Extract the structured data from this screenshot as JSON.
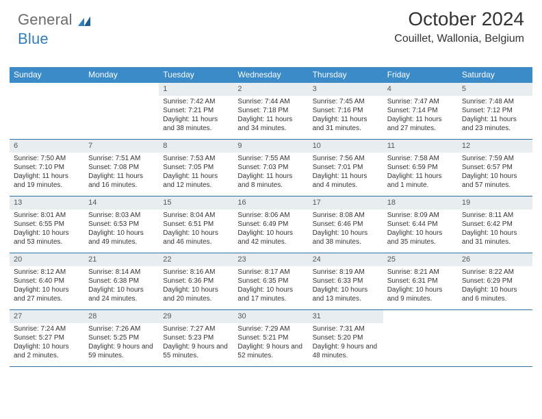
{
  "logo": {
    "text_general": "General",
    "text_blue": "Blue"
  },
  "title": "October 2024",
  "location": "Couillet, Wallonia, Belgium",
  "colors": {
    "header_bg": "#3b8bc9",
    "daynum_bg": "#e8edf0",
    "week_border": "#2f6ea3",
    "text": "#333333",
    "logo_gray": "#6b6b6b",
    "logo_blue": "#2f7ec0"
  },
  "weekdays": [
    "Sunday",
    "Monday",
    "Tuesday",
    "Wednesday",
    "Thursday",
    "Friday",
    "Saturday"
  ],
  "weeks": [
    [
      {
        "n": "",
        "sr": "",
        "ss": "",
        "dl": ""
      },
      {
        "n": "",
        "sr": "",
        "ss": "",
        "dl": ""
      },
      {
        "n": "1",
        "sr": "Sunrise: 7:42 AM",
        "ss": "Sunset: 7:21 PM",
        "dl": "Daylight: 11 hours and 38 minutes."
      },
      {
        "n": "2",
        "sr": "Sunrise: 7:44 AM",
        "ss": "Sunset: 7:18 PM",
        "dl": "Daylight: 11 hours and 34 minutes."
      },
      {
        "n": "3",
        "sr": "Sunrise: 7:45 AM",
        "ss": "Sunset: 7:16 PM",
        "dl": "Daylight: 11 hours and 31 minutes."
      },
      {
        "n": "4",
        "sr": "Sunrise: 7:47 AM",
        "ss": "Sunset: 7:14 PM",
        "dl": "Daylight: 11 hours and 27 minutes."
      },
      {
        "n": "5",
        "sr": "Sunrise: 7:48 AM",
        "ss": "Sunset: 7:12 PM",
        "dl": "Daylight: 11 hours and 23 minutes."
      }
    ],
    [
      {
        "n": "6",
        "sr": "Sunrise: 7:50 AM",
        "ss": "Sunset: 7:10 PM",
        "dl": "Daylight: 11 hours and 19 minutes."
      },
      {
        "n": "7",
        "sr": "Sunrise: 7:51 AM",
        "ss": "Sunset: 7:08 PM",
        "dl": "Daylight: 11 hours and 16 minutes."
      },
      {
        "n": "8",
        "sr": "Sunrise: 7:53 AM",
        "ss": "Sunset: 7:05 PM",
        "dl": "Daylight: 11 hours and 12 minutes."
      },
      {
        "n": "9",
        "sr": "Sunrise: 7:55 AM",
        "ss": "Sunset: 7:03 PM",
        "dl": "Daylight: 11 hours and 8 minutes."
      },
      {
        "n": "10",
        "sr": "Sunrise: 7:56 AM",
        "ss": "Sunset: 7:01 PM",
        "dl": "Daylight: 11 hours and 4 minutes."
      },
      {
        "n": "11",
        "sr": "Sunrise: 7:58 AM",
        "ss": "Sunset: 6:59 PM",
        "dl": "Daylight: 11 hours and 1 minute."
      },
      {
        "n": "12",
        "sr": "Sunrise: 7:59 AM",
        "ss": "Sunset: 6:57 PM",
        "dl": "Daylight: 10 hours and 57 minutes."
      }
    ],
    [
      {
        "n": "13",
        "sr": "Sunrise: 8:01 AM",
        "ss": "Sunset: 6:55 PM",
        "dl": "Daylight: 10 hours and 53 minutes."
      },
      {
        "n": "14",
        "sr": "Sunrise: 8:03 AM",
        "ss": "Sunset: 6:53 PM",
        "dl": "Daylight: 10 hours and 49 minutes."
      },
      {
        "n": "15",
        "sr": "Sunrise: 8:04 AM",
        "ss": "Sunset: 6:51 PM",
        "dl": "Daylight: 10 hours and 46 minutes."
      },
      {
        "n": "16",
        "sr": "Sunrise: 8:06 AM",
        "ss": "Sunset: 6:49 PM",
        "dl": "Daylight: 10 hours and 42 minutes."
      },
      {
        "n": "17",
        "sr": "Sunrise: 8:08 AM",
        "ss": "Sunset: 6:46 PM",
        "dl": "Daylight: 10 hours and 38 minutes."
      },
      {
        "n": "18",
        "sr": "Sunrise: 8:09 AM",
        "ss": "Sunset: 6:44 PM",
        "dl": "Daylight: 10 hours and 35 minutes."
      },
      {
        "n": "19",
        "sr": "Sunrise: 8:11 AM",
        "ss": "Sunset: 6:42 PM",
        "dl": "Daylight: 10 hours and 31 minutes."
      }
    ],
    [
      {
        "n": "20",
        "sr": "Sunrise: 8:12 AM",
        "ss": "Sunset: 6:40 PM",
        "dl": "Daylight: 10 hours and 27 minutes."
      },
      {
        "n": "21",
        "sr": "Sunrise: 8:14 AM",
        "ss": "Sunset: 6:38 PM",
        "dl": "Daylight: 10 hours and 24 minutes."
      },
      {
        "n": "22",
        "sr": "Sunrise: 8:16 AM",
        "ss": "Sunset: 6:36 PM",
        "dl": "Daylight: 10 hours and 20 minutes."
      },
      {
        "n": "23",
        "sr": "Sunrise: 8:17 AM",
        "ss": "Sunset: 6:35 PM",
        "dl": "Daylight: 10 hours and 17 minutes."
      },
      {
        "n": "24",
        "sr": "Sunrise: 8:19 AM",
        "ss": "Sunset: 6:33 PM",
        "dl": "Daylight: 10 hours and 13 minutes."
      },
      {
        "n": "25",
        "sr": "Sunrise: 8:21 AM",
        "ss": "Sunset: 6:31 PM",
        "dl": "Daylight: 10 hours and 9 minutes."
      },
      {
        "n": "26",
        "sr": "Sunrise: 8:22 AM",
        "ss": "Sunset: 6:29 PM",
        "dl": "Daylight: 10 hours and 6 minutes."
      }
    ],
    [
      {
        "n": "27",
        "sr": "Sunrise: 7:24 AM",
        "ss": "Sunset: 5:27 PM",
        "dl": "Daylight: 10 hours and 2 minutes."
      },
      {
        "n": "28",
        "sr": "Sunrise: 7:26 AM",
        "ss": "Sunset: 5:25 PM",
        "dl": "Daylight: 9 hours and 59 minutes."
      },
      {
        "n": "29",
        "sr": "Sunrise: 7:27 AM",
        "ss": "Sunset: 5:23 PM",
        "dl": "Daylight: 9 hours and 55 minutes."
      },
      {
        "n": "30",
        "sr": "Sunrise: 7:29 AM",
        "ss": "Sunset: 5:21 PM",
        "dl": "Daylight: 9 hours and 52 minutes."
      },
      {
        "n": "31",
        "sr": "Sunrise: 7:31 AM",
        "ss": "Sunset: 5:20 PM",
        "dl": "Daylight: 9 hours and 48 minutes."
      },
      {
        "n": "",
        "sr": "",
        "ss": "",
        "dl": ""
      },
      {
        "n": "",
        "sr": "",
        "ss": "",
        "dl": ""
      }
    ]
  ]
}
